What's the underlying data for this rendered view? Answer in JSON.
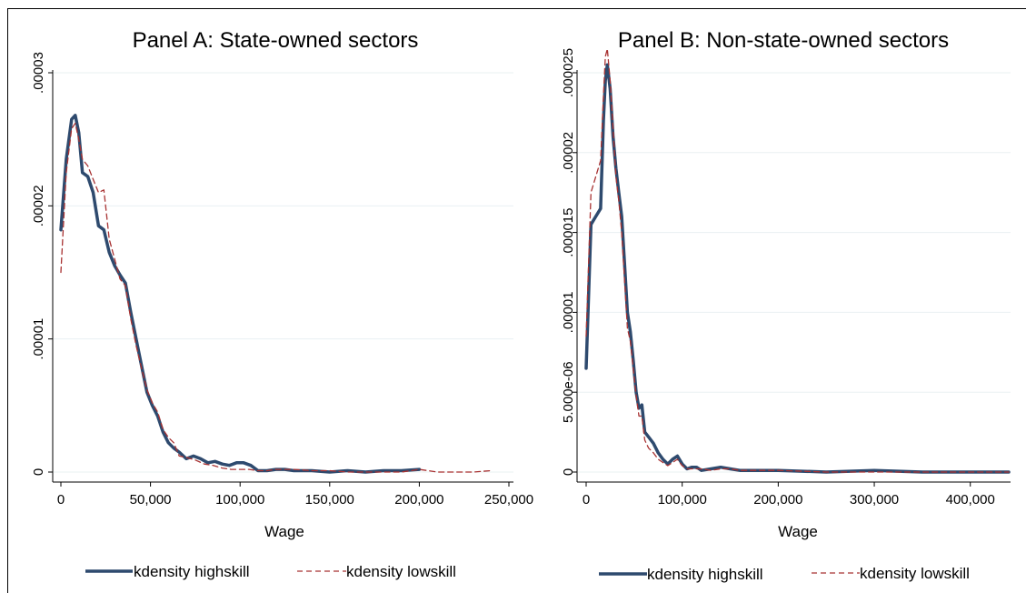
{
  "chart_data": [
    {
      "type": "line",
      "title": "Panel A: State-owned sectors",
      "xlabel": "Wage",
      "ylabel": "",
      "xlim": [
        0,
        250000
      ],
      "ylim": [
        0,
        3e-05
      ],
      "xticks": [
        0,
        50000,
        100000,
        150000,
        200000,
        250000
      ],
      "xtick_labels": [
        "0",
        "50,000",
        "100,000",
        "150,000",
        "200,000",
        "250,000"
      ],
      "yticks": [
        0,
        1e-05,
        2e-05,
        3e-05
      ],
      "ytick_labels": [
        "0",
        ".00001",
        ".00002",
        ".00003"
      ],
      "grid": true,
      "legend_position": "bottom",
      "series": [
        {
          "name": "kdensity highskill",
          "color": "#2e4a6e",
          "style": "solid",
          "x": [
            0,
            3000,
            6000,
            8000,
            10000,
            12000,
            15000,
            18000,
            21000,
            24000,
            27000,
            30000,
            33000,
            36000,
            39000,
            42000,
            45000,
            48000,
            51000,
            54000,
            57000,
            60000,
            63000,
            66000,
            70000,
            74000,
            78000,
            82000,
            86000,
            90000,
            94000,
            98000,
            102000,
            106000,
            110000,
            115000,
            120000,
            125000,
            130000,
            140000,
            150000,
            160000,
            170000,
            180000,
            190000,
            200000
          ],
          "y": [
            1.82e-05,
            2.35e-05,
            2.65e-05,
            2.68e-05,
            2.55e-05,
            2.25e-05,
            2.22e-05,
            2.1e-05,
            1.85e-05,
            1.82e-05,
            1.65e-05,
            1.55e-05,
            1.48e-05,
            1.42e-05,
            1.2e-05,
            1e-05,
            8e-06,
            6e-06,
            5e-06,
            4.2e-06,
            3e-06,
            2.2e-06,
            1.8e-06,
            1.5e-06,
            1e-06,
            1.2e-06,
            1e-06,
            7e-07,
            8e-07,
            6e-07,
            5e-07,
            7e-07,
            7e-07,
            5e-07,
            1e-07,
            1e-07,
            2e-07,
            2e-07,
            1e-07,
            1e-07,
            0.0,
            1e-07,
            0.0,
            1e-07,
            1e-07,
            2e-07
          ]
        },
        {
          "name": "kdensity lowskill",
          "color": "#a83232",
          "style": "dashed",
          "x": [
            0,
            3000,
            6000,
            8000,
            10000,
            12000,
            15000,
            18000,
            21000,
            24000,
            27000,
            30000,
            33000,
            36000,
            39000,
            42000,
            45000,
            48000,
            51000,
            54000,
            57000,
            60000,
            63000,
            66000,
            70000,
            75000,
            80000,
            85000,
            90000,
            95000,
            100000,
            105000,
            110000,
            115000,
            120000,
            130000,
            140000,
            150000,
            160000,
            170000,
            180000,
            190000,
            200000,
            210000,
            220000,
            230000,
            240000
          ],
          "y": [
            1.5e-05,
            2.25e-05,
            2.58e-05,
            2.62e-05,
            2.5e-05,
            2.35e-05,
            2.3e-05,
            2.2e-05,
            2.1e-05,
            2.12e-05,
            1.75e-05,
            1.6e-05,
            1.45e-05,
            1.4e-05,
            1.15e-05,
            9.5e-06,
            7.8e-06,
            6.2e-06,
            5.2e-06,
            4.5e-06,
            3.2e-06,
            2.6e-06,
            2.2e-06,
            1.2e-06,
            1.1e-06,
            9e-07,
            6e-07,
            5e-07,
            3e-07,
            2e-07,
            2e-07,
            2e-07,
            1e-07,
            1e-07,
            2e-07,
            2e-07,
            1e-07,
            1e-07,
            0.0,
            0.0,
            0.0,
            0.0,
            2e-07,
            0.0,
            0.0,
            0.0,
            1e-07
          ]
        }
      ]
    },
    {
      "type": "line",
      "title": "Panel B: Non-state-owned sectors",
      "xlabel": "Wage",
      "ylabel": "",
      "xlim": [
        0,
        440000
      ],
      "ylim": [
        0,
        2.5e-05
      ],
      "xticks": [
        0,
        100000,
        200000,
        300000,
        400000
      ],
      "xtick_labels": [
        "0",
        "100,000",
        "200,000",
        "300,000",
        "400,000"
      ],
      "yticks": [
        0,
        5e-06,
        1e-05,
        1.5e-05,
        2e-05,
        2.5e-05
      ],
      "ytick_labels": [
        "0",
        "5.000e-06",
        ".00001",
        ".000015",
        ".00002",
        ".000025"
      ],
      "grid": true,
      "legend_position": "bottom",
      "series": [
        {
          "name": "kdensity highskill",
          "color": "#2e4a6e",
          "style": "solid",
          "x": [
            0,
            5000,
            10000,
            15000,
            18000,
            20000,
            22000,
            25000,
            28000,
            31000,
            34000,
            37000,
            40000,
            43000,
            46000,
            49000,
            52000,
            55000,
            58000,
            61000,
            65000,
            70000,
            75000,
            80000,
            85000,
            90000,
            95000,
            100000,
            105000,
            110000,
            115000,
            120000,
            130000,
            140000,
            150000,
            160000,
            180000,
            200000,
            250000,
            300000,
            350000,
            400000,
            440000
          ],
          "y": [
            6.5e-06,
            1.55e-05,
            1.6e-05,
            1.65e-05,
            2.2e-05,
            2.45e-05,
            2.55e-05,
            2.4e-05,
            2.1e-05,
            1.9e-05,
            1.75e-05,
            1.6e-05,
            1.3e-05,
            1e-05,
            8.8e-06,
            7e-06,
            5e-06,
            4e-06,
            4.2e-06,
            2.5e-06,
            2.2e-06,
            1.8e-06,
            1.2e-06,
            8e-07,
            5e-07,
            8e-07,
            1e-06,
            5e-07,
            2e-07,
            3e-07,
            3e-07,
            1e-07,
            2e-07,
            3e-07,
            2e-07,
            1e-07,
            1e-07,
            1e-07,
            0.0,
            1e-07,
            0.0,
            0.0,
            0.0
          ]
        },
        {
          "name": "kdensity lowskill",
          "color": "#a83232",
          "style": "dashed",
          "x": [
            0,
            5000,
            10000,
            15000,
            18000,
            20000,
            22000,
            25000,
            28000,
            31000,
            34000,
            37000,
            40000,
            43000,
            46000,
            49000,
            52000,
            55000,
            58000,
            61000,
            65000,
            70000,
            75000,
            80000,
            85000,
            90000,
            95000,
            100000,
            105000,
            110000,
            120000,
            130000,
            140000,
            150000,
            160000,
            180000,
            200000,
            250000,
            300000,
            350000,
            400000,
            440000
          ],
          "y": [
            8.5e-06,
            1.75e-05,
            1.85e-05,
            1.95e-05,
            2.35e-05,
            2.6e-05,
            2.65e-05,
            2.45e-05,
            2.15e-05,
            1.85e-05,
            1.7e-05,
            1.5e-05,
            1.2e-05,
            9e-06,
            8.2e-06,
            6.5e-06,
            4.8e-06,
            3.5e-06,
            3.5e-06,
            2e-06,
            1.5e-06,
            1.2e-06,
            8e-07,
            6e-07,
            4e-07,
            6e-07,
            8e-07,
            4e-07,
            2e-07,
            2e-07,
            2e-07,
            1e-07,
            2e-07,
            2e-07,
            1e-07,
            1e-07,
            1e-07,
            0.0,
            0.0,
            0.0,
            0.0,
            0.0
          ]
        }
      ]
    }
  ]
}
